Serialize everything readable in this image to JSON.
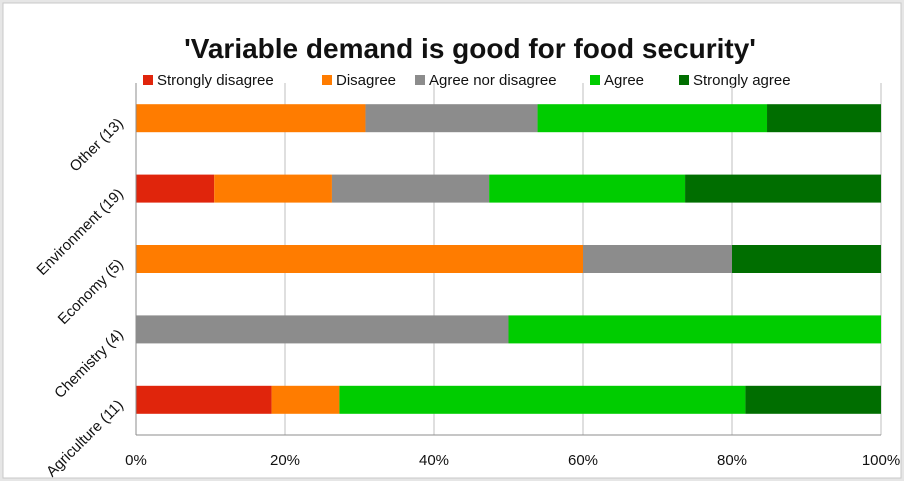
{
  "chart_data": {
    "type": "bar",
    "orientation": "horizontal",
    "stacked": true,
    "normalized_percent": true,
    "title": "'Variable demand is good for food security'",
    "xlabel": "",
    "ylabel": "",
    "xlim": [
      0,
      100
    ],
    "x_ticks": [
      "0%",
      "20%",
      "40%",
      "60%",
      "80%",
      "100%"
    ],
    "grid": true,
    "legend_position": "top",
    "categories": [
      "Other (13)",
      "Environment (19)",
      "Economy (5)",
      "Chemistry (4)",
      "Agriculture (11)"
    ],
    "series": [
      {
        "name": "Strongly disagree",
        "color": "#e0250c",
        "values": [
          0,
          10.5,
          0,
          0,
          18.2
        ]
      },
      {
        "name": "Disagree",
        "color": "#ff7c00",
        "values": [
          30.8,
          15.8,
          60,
          0,
          9.1
        ]
      },
      {
        "name": "Agree nor disagree",
        "color": "#8c8c8c",
        "values": [
          23.1,
          21.1,
          20,
          50,
          0
        ]
      },
      {
        "name": "Agree",
        "color": "#00cc00",
        "values": [
          30.8,
          26.3,
          0,
          50,
          54.5
        ]
      },
      {
        "name": "Strongly agree",
        "color": "#006e00",
        "values": [
          15.3,
          26.3,
          20,
          0,
          18.2
        ]
      }
    ]
  }
}
